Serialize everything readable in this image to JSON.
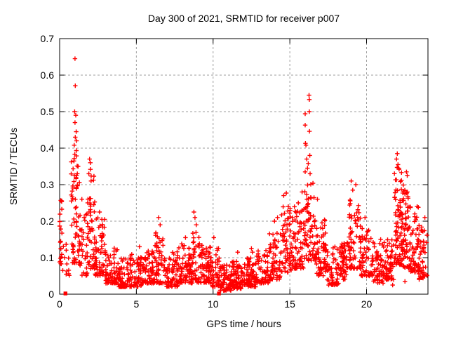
{
  "window": {
    "background": "#ffffff",
    "text_color": "#000000"
  },
  "chart_data": {
    "type": "scatter",
    "title": "Day 300 of 2021, SRMTID for receiver p007",
    "xlabel": "GPS time / hours",
    "ylabel": "SRMTID / TECUs",
    "xlim": [
      0,
      24
    ],
    "ylim": [
      0,
      0.7
    ],
    "xticks": [
      0,
      5,
      10,
      15,
      20
    ],
    "yticks": [
      0,
      0.1,
      0.2,
      0.3,
      0.4,
      0.5,
      0.6,
      0.7
    ],
    "grid": true,
    "grid_style": "dashed",
    "grid_color": "#9e9e9e",
    "border_color": "#000000",
    "marker": "plus",
    "marker_color": "#ff0000",
    "zero_marker": "filled-square",
    "zero_markers_x_hours": [
      0.38,
      10.38
    ],
    "seed": 1234,
    "density_bins_format": [
      "hour_start",
      "hour_end",
      "count",
      "ymin",
      "ymax",
      "low_bias"
    ],
    "density_bins": [
      [
        0.0,
        0.15,
        22,
        0.07,
        0.26,
        1.1
      ],
      [
        0.15,
        0.75,
        12,
        0.05,
        0.14,
        1.5
      ],
      [
        0.75,
        1.3,
        65,
        0.08,
        0.4,
        1.5
      ],
      [
        1.3,
        1.8,
        30,
        0.05,
        0.22,
        1.7
      ],
      [
        1.8,
        2.3,
        55,
        0.07,
        0.36,
        1.5
      ],
      [
        2.3,
        3.0,
        60,
        0.05,
        0.21,
        1.8
      ],
      [
        3.0,
        3.8,
        65,
        0.03,
        0.13,
        1.8
      ],
      [
        3.8,
        4.6,
        65,
        0.02,
        0.1,
        1.8
      ],
      [
        4.6,
        5.4,
        65,
        0.02,
        0.11,
        1.8
      ],
      [
        5.4,
        6.2,
        65,
        0.03,
        0.12,
        1.8
      ],
      [
        6.2,
        6.9,
        60,
        0.03,
        0.17,
        1.8
      ],
      [
        6.9,
        7.7,
        65,
        0.02,
        0.12,
        1.8
      ],
      [
        7.7,
        8.5,
        65,
        0.03,
        0.14,
        1.8
      ],
      [
        8.5,
        9.3,
        65,
        0.03,
        0.17,
        1.8
      ],
      [
        9.3,
        9.9,
        55,
        0.03,
        0.13,
        1.8
      ],
      [
        9.9,
        10.45,
        45,
        0.02,
        0.13,
        1.8
      ],
      [
        10.45,
        11.2,
        65,
        0.01,
        0.08,
        1.8
      ],
      [
        11.2,
        12.0,
        70,
        0.015,
        0.09,
        1.8
      ],
      [
        12.0,
        12.8,
        70,
        0.02,
        0.1,
        1.8
      ],
      [
        12.8,
        13.6,
        60,
        0.03,
        0.12,
        1.8
      ],
      [
        13.6,
        14.4,
        60,
        0.04,
        0.17,
        1.7
      ],
      [
        14.4,
        15.1,
        65,
        0.06,
        0.24,
        1.6
      ],
      [
        15.1,
        15.9,
        68,
        0.07,
        0.24,
        1.6
      ],
      [
        15.9,
        16.7,
        78,
        0.09,
        0.33,
        1.5
      ],
      [
        16.7,
        17.4,
        62,
        0.05,
        0.22,
        1.8
      ],
      [
        17.4,
        18.3,
        60,
        0.025,
        0.13,
        1.8
      ],
      [
        18.3,
        18.7,
        45,
        0.04,
        0.15,
        1.8
      ],
      [
        18.7,
        19.6,
        70,
        0.07,
        0.26,
        1.6
      ],
      [
        19.6,
        20.4,
        60,
        0.05,
        0.18,
        1.8
      ],
      [
        20.4,
        21.2,
        65,
        0.03,
        0.15,
        1.8
      ],
      [
        21.2,
        21.8,
        55,
        0.04,
        0.16,
        1.8
      ],
      [
        21.8,
        22.3,
        75,
        0.08,
        0.35,
        1.5
      ],
      [
        22.3,
        22.8,
        70,
        0.07,
        0.3,
        1.6
      ],
      [
        22.8,
        23.4,
        60,
        0.06,
        0.24,
        1.7
      ],
      [
        23.4,
        23.95,
        45,
        0.04,
        0.19,
        1.7
      ]
    ],
    "outlier_points": [
      [
        1.0,
        0.645
      ],
      [
        1.02,
        0.571
      ],
      [
        0.98,
        0.5
      ],
      [
        1.05,
        0.49
      ],
      [
        1.0,
        0.47
      ],
      [
        1.08,
        0.445
      ],
      [
        1.02,
        0.43
      ],
      [
        1.1,
        0.42
      ],
      [
        0.95,
        0.408
      ],
      [
        1.2,
        0.35
      ],
      [
        1.15,
        0.33
      ],
      [
        1.45,
        0.26
      ],
      [
        1.6,
        0.21
      ],
      [
        1.95,
        0.37
      ],
      [
        2.0,
        0.36
      ],
      [
        1.9,
        0.33
      ],
      [
        2.05,
        0.31
      ],
      [
        2.6,
        0.225
      ],
      [
        2.75,
        0.205
      ],
      [
        5.2,
        0.13
      ],
      [
        6.45,
        0.21
      ],
      [
        6.55,
        0.19
      ],
      [
        8.2,
        0.155
      ],
      [
        8.75,
        0.225
      ],
      [
        8.82,
        0.21
      ],
      [
        8.9,
        0.19
      ],
      [
        10.05,
        0.155
      ],
      [
        11.6,
        0.115
      ],
      [
        12.5,
        0.125
      ],
      [
        12.56,
        0.115
      ],
      [
        14.0,
        0.2
      ],
      [
        14.2,
        0.21
      ],
      [
        14.6,
        0.27
      ],
      [
        14.77,
        0.277
      ],
      [
        14.9,
        0.24
      ],
      [
        15.55,
        0.25
      ],
      [
        15.8,
        0.28
      ],
      [
        16.25,
        0.545
      ],
      [
        16.27,
        0.533
      ],
      [
        16.0,
        0.494
      ],
      [
        16.27,
        0.5
      ],
      [
        16.0,
        0.463
      ],
      [
        16.28,
        0.446
      ],
      [
        16.02,
        0.413
      ],
      [
        16.05,
        0.408
      ],
      [
        16.3,
        0.38
      ],
      [
        16.1,
        0.37
      ],
      [
        16.2,
        0.358
      ],
      [
        16.15,
        0.345
      ],
      [
        16.0,
        0.335
      ],
      [
        16.32,
        0.33
      ],
      [
        16.8,
        0.26
      ],
      [
        19.0,
        0.31
      ],
      [
        19.3,
        0.3
      ],
      [
        19.1,
        0.285
      ],
      [
        19.9,
        0.21
      ],
      [
        20.0,
        0.05
      ],
      [
        21.35,
        0.04
      ],
      [
        21.7,
        0.025
      ],
      [
        22.5,
        0.035
      ],
      [
        22.0,
        0.385
      ],
      [
        21.95,
        0.37
      ],
      [
        22.05,
        0.355
      ],
      [
        22.1,
        0.345
      ],
      [
        22.6,
        0.335
      ],
      [
        22.65,
        0.325
      ],
      [
        23.8,
        0.21
      ]
    ]
  }
}
